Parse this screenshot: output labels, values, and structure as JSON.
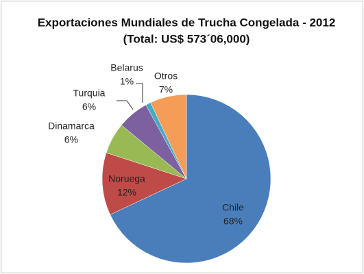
{
  "chart_data": {
    "type": "pie",
    "title": [
      "Exportaciones Mundiales de Trucha Congelada - 2012",
      "(Total: US$ 573´06,000)"
    ],
    "categories": [
      "Chile",
      "Noruega",
      "Dinamarca",
      "Turquia",
      "Belarus",
      "Otros"
    ],
    "values": [
      68,
      12,
      6,
      6,
      1,
      7
    ],
    "value_labels": [
      "68%",
      "12%",
      "6%",
      "6%",
      "1%",
      "7%"
    ],
    "colors": [
      "#4a7ebb",
      "#be4b48",
      "#98b954",
      "#7d60a0",
      "#46aac5",
      "#f59d56"
    ]
  }
}
